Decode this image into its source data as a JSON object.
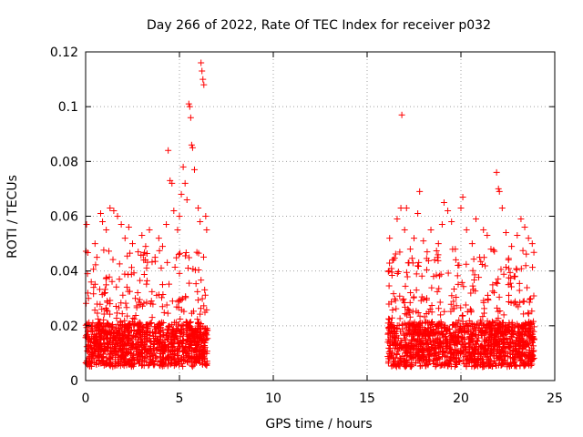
{
  "chart_data": {
    "type": "scatter",
    "title": "Day 266 of 2022, Rate Of TEC Index for receiver p032",
    "xlabel": "GPS time / hours",
    "ylabel": "ROTI / TECUs",
    "xlim": [
      0,
      25
    ],
    "ylim": [
      0,
      0.12
    ],
    "x_ticks": [
      0,
      5,
      10,
      15,
      20,
      25
    ],
    "x_tick_labels": [
      "0",
      "5",
      "10",
      "15",
      "20",
      "25"
    ],
    "y_ticks": [
      0,
      0.02,
      0.04,
      0.06,
      0.08,
      0.1,
      0.12
    ],
    "y_tick_labels": [
      "0",
      "0.02",
      "0.04",
      "0.06",
      "0.08",
      "0.1",
      "0.12"
    ],
    "grid": true,
    "marker": "plus",
    "color": "#ff0000",
    "segments": [
      {
        "x_start": 0.0,
        "x_end": 6.5
      },
      {
        "x_start": 16.1,
        "x_end": 23.9
      }
    ],
    "points": [
      [
        0.05,
        0.057
      ],
      [
        0.1,
        0.039
      ],
      [
        0.3,
        0.036
      ],
      [
        0.5,
        0.05
      ],
      [
        0.6,
        0.045
      ],
      [
        0.8,
        0.061
      ],
      [
        0.9,
        0.058
      ],
      [
        1.1,
        0.055
      ],
      [
        1.3,
        0.063
      ],
      [
        1.5,
        0.062
      ],
      [
        1.7,
        0.06
      ],
      [
        1.9,
        0.057
      ],
      [
        2.1,
        0.052
      ],
      [
        2.3,
        0.056
      ],
      [
        2.5,
        0.05
      ],
      [
        2.8,
        0.047
      ],
      [
        3.0,
        0.053
      ],
      [
        3.2,
        0.049
      ],
      [
        3.4,
        0.055
      ],
      [
        3.7,
        0.045
      ],
      [
        3.9,
        0.052
      ],
      [
        4.1,
        0.049
      ],
      [
        4.3,
        0.057
      ],
      [
        4.4,
        0.084
      ],
      [
        4.5,
        0.073
      ],
      [
        4.6,
        0.072
      ],
      [
        4.7,
        0.062
      ],
      [
        4.9,
        0.055
      ],
      [
        5.0,
        0.06
      ],
      [
        5.1,
        0.068
      ],
      [
        5.2,
        0.078
      ],
      [
        5.3,
        0.072
      ],
      [
        5.4,
        0.066
      ],
      [
        5.5,
        0.101
      ],
      [
        5.55,
        0.1
      ],
      [
        5.6,
        0.096
      ],
      [
        5.65,
        0.086
      ],
      [
        5.7,
        0.085
      ],
      [
        5.8,
        0.077
      ],
      [
        6.0,
        0.063
      ],
      [
        6.1,
        0.058
      ],
      [
        6.15,
        0.116
      ],
      [
        6.2,
        0.113
      ],
      [
        6.25,
        0.11
      ],
      [
        6.3,
        0.108
      ],
      [
        6.4,
        0.06
      ],
      [
        6.45,
        0.055
      ],
      [
        16.2,
        0.052
      ],
      [
        16.4,
        0.044
      ],
      [
        16.6,
        0.059
      ],
      [
        16.8,
        0.063
      ],
      [
        16.85,
        0.097
      ],
      [
        17.0,
        0.055
      ],
      [
        17.1,
        0.063
      ],
      [
        17.3,
        0.048
      ],
      [
        17.5,
        0.052
      ],
      [
        17.7,
        0.061
      ],
      [
        17.8,
        0.069
      ],
      [
        18.0,
        0.051
      ],
      [
        18.2,
        0.047
      ],
      [
        18.4,
        0.055
      ],
      [
        18.6,
        0.044
      ],
      [
        18.8,
        0.05
      ],
      [
        19.0,
        0.057
      ],
      [
        19.1,
        0.065
      ],
      [
        19.3,
        0.062
      ],
      [
        19.5,
        0.058
      ],
      [
        19.7,
        0.048
      ],
      [
        20.0,
        0.063
      ],
      [
        20.1,
        0.067
      ],
      [
        20.3,
        0.055
      ],
      [
        20.6,
        0.05
      ],
      [
        20.8,
        0.059
      ],
      [
        21.0,
        0.045
      ],
      [
        21.2,
        0.055
      ],
      [
        21.4,
        0.053
      ],
      [
        21.6,
        0.048
      ],
      [
        21.9,
        0.076
      ],
      [
        22.0,
        0.07
      ],
      [
        22.05,
        0.069
      ],
      [
        22.2,
        0.063
      ],
      [
        22.4,
        0.054
      ],
      [
        22.7,
        0.049
      ],
      [
        23.0,
        0.053
      ],
      [
        23.2,
        0.059
      ],
      [
        23.4,
        0.056
      ],
      [
        23.6,
        0.052
      ],
      [
        23.8,
        0.05
      ]
    ],
    "baseline_band": {
      "low": 0.005,
      "typical_high": 0.03
    }
  }
}
